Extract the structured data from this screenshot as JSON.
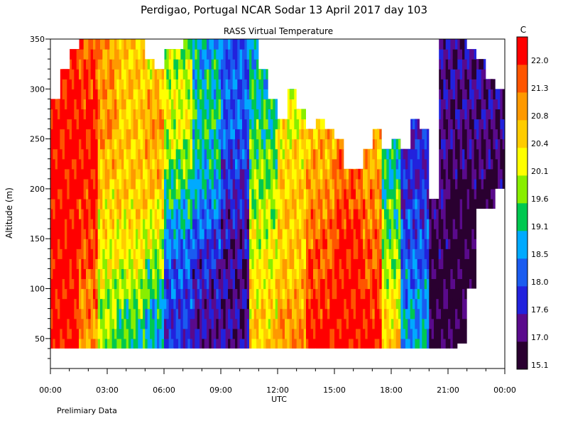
{
  "chart_data": {
    "type": "heatmap",
    "title": "Perdigao, Portugal  NCAR Sodar  13 April 2017  day 103",
    "subtitle": "RASS Virtual Temperature",
    "xlabel": "UTC",
    "ylabel": "Altitude (m)",
    "footnote": "Prelimiary Data",
    "xlim": [
      0,
      24
    ],
    "ylim": [
      20,
      350
    ],
    "x_ticks": [
      {
        "value": 0,
        "label": "00:00"
      },
      {
        "value": 3,
        "label": "03:00"
      },
      {
        "value": 6,
        "label": "06:00"
      },
      {
        "value": 9,
        "label": "09:00"
      },
      {
        "value": 12,
        "label": "12:00"
      },
      {
        "value": 15,
        "label": "15:00"
      },
      {
        "value": 18,
        "label": "18:00"
      },
      {
        "value": 21,
        "label": "21:00"
      },
      {
        "value": 24,
        "label": "00:00"
      }
    ],
    "y_ticks": [
      {
        "value": 50,
        "label": "50"
      },
      {
        "value": 100,
        "label": "100"
      },
      {
        "value": 150,
        "label": "150"
      },
      {
        "value": 200,
        "label": "200"
      },
      {
        "value": 250,
        "label": "250"
      },
      {
        "value": 300,
        "label": "300"
      },
      {
        "value": 350,
        "label": "350"
      }
    ],
    "colorbar": {
      "unit": "C",
      "colors": [
        "#2a0030",
        "#5a0a8c",
        "#2222dd",
        "#1a5cf0",
        "#00aaff",
        "#00c850",
        "#88ee00",
        "#ffff00",
        "#ffcc00",
        "#ff9900",
        "#ff5500",
        "#ff0000"
      ],
      "labels": [
        "15.1",
        "17.0",
        "17.6",
        "18.0",
        "18.5",
        "19.1",
        "19.6",
        "20.1",
        "20.4",
        "20.8",
        "21.3",
        "22.0"
      ]
    },
    "time_hours": [
      0,
      0.5,
      1,
      1.5,
      2,
      2.5,
      3,
      3.5,
      4,
      4.5,
      5,
      5.5,
      6,
      6.5,
      7,
      7.5,
      8,
      8.5,
      9,
      9.5,
      10,
      10.5,
      11,
      11.5,
      12,
      12.5,
      13,
      13.5,
      14,
      14.5,
      15,
      15.5,
      16,
      16.5,
      17,
      17.5,
      18,
      18.5,
      19,
      19.5,
      20,
      20.5,
      21,
      21.5,
      22,
      22.5,
      23,
      23.5
    ],
    "coverage_top_m": [
      290,
      320,
      340,
      350,
      350,
      350,
      350,
      350,
      350,
      350,
      330,
      320,
      340,
      340,
      350,
      350,
      350,
      350,
      350,
      350,
      350,
      350,
      320,
      290,
      270,
      300,
      280,
      260,
      270,
      260,
      250,
      220,
      220,
      240,
      260,
      240,
      250,
      240,
      270,
      260,
      190,
      350,
      350,
      350,
      340,
      330,
      310,
      300
    ],
    "coverage_bottom_m": [
      40,
      40,
      40,
      40,
      40,
      40,
      40,
      40,
      40,
      40,
      40,
      40,
      40,
      40,
      40,
      40,
      40,
      40,
      40,
      40,
      40,
      40,
      40,
      40,
      40,
      40,
      40,
      40,
      40,
      40,
      40,
      40,
      40,
      40,
      40,
      40,
      40,
      40,
      40,
      40,
      40,
      40,
      40,
      45,
      100,
      180,
      180,
      200
    ],
    "bands": [
      {
        "t_start": 0.0,
        "t_end": 1.5,
        "levels": [
          11,
          11,
          11,
          11,
          11
        ]
      },
      {
        "t_start": 1.5,
        "t_end": 2.5,
        "levels": [
          9,
          10,
          11,
          11,
          10
        ]
      },
      {
        "t_start": 2.5,
        "t_end": 3.5,
        "levels": [
          6,
          7,
          8,
          9,
          9
        ]
      },
      {
        "t_start": 3.5,
        "t_end": 5.0,
        "levels": [
          5,
          7,
          8,
          8,
          8
        ]
      },
      {
        "t_start": 5.0,
        "t_end": 6.0,
        "levels": [
          4,
          6,
          8,
          9,
          7
        ]
      },
      {
        "t_start": 6.0,
        "t_end": 7.5,
        "levels": [
          2,
          3,
          5,
          7,
          6
        ]
      },
      {
        "t_start": 7.5,
        "t_end": 9.0,
        "levels": [
          1,
          2,
          4,
          5,
          4
        ]
      },
      {
        "t_start": 9.0,
        "t_end": 10.5,
        "levels": [
          1,
          1,
          2,
          3,
          3
        ]
      },
      {
        "t_start": 10.5,
        "t_end": 12.0,
        "levels": [
          8,
          7,
          6,
          5,
          4
        ]
      },
      {
        "t_start": 12.0,
        "t_end": 13.5,
        "levels": [
          9,
          8,
          8,
          7,
          6
        ]
      },
      {
        "t_start": 13.5,
        "t_end": 15.0,
        "levels": [
          11,
          10,
          9,
          8,
          7
        ]
      },
      {
        "t_start": 15.0,
        "t_end": 16.5,
        "levels": [
          11,
          11,
          10,
          9,
          8
        ]
      },
      {
        "t_start": 16.5,
        "t_end": 17.5,
        "levels": [
          11,
          10,
          9,
          8,
          7
        ]
      },
      {
        "t_start": 17.5,
        "t_end": 18.5,
        "levels": [
          8,
          6,
          5,
          4,
          3
        ]
      },
      {
        "t_start": 18.5,
        "t_end": 20.0,
        "levels": [
          4,
          3,
          2,
          2,
          2
        ]
      },
      {
        "t_start": 20.0,
        "t_end": 21.0,
        "levels": [
          0,
          0,
          1,
          1,
          1
        ]
      },
      {
        "t_start": 21.0,
        "t_end": 24.0,
        "levels": [
          0,
          0,
          0,
          1,
          1
        ]
      }
    ],
    "band_altitudes_m": [
      60,
      130,
      200,
      270,
      340
    ]
  }
}
